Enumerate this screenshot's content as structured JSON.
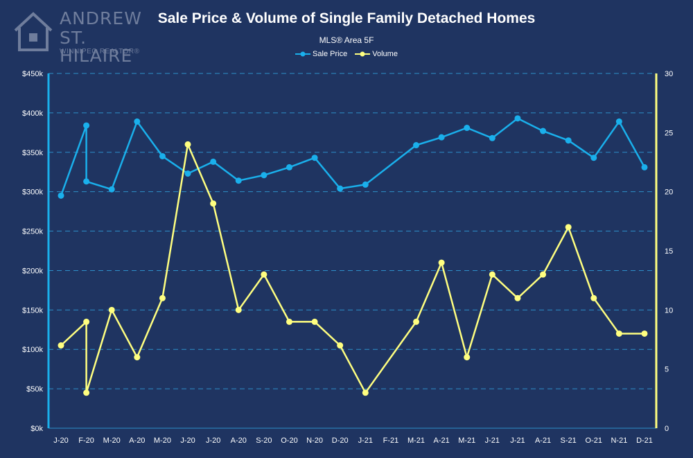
{
  "branding": {
    "line1": "ANDREW",
    "line2": "ST. HILAIRE",
    "line3": "WINNIPEG REALTOR®"
  },
  "colors": {
    "background": "#1f3461",
    "sale_price": "#1ab0ec",
    "volume": "#ffff80",
    "grid": "#2e8fc9",
    "text": "#ffffff"
  },
  "chart_data": {
    "type": "line",
    "title": "Sale Price & Volume of Single Family Detached Homes",
    "subtitle": "MLS® Area 5F",
    "categories": [
      "J-20",
      "F-20",
      "F-20",
      "M-20",
      "A-20",
      "M-20",
      "J-20",
      "J-20",
      "A-20",
      "S-20",
      "O-20",
      "N-20",
      "D-20",
      "J-21",
      "F-21",
      "M-21",
      "A-21",
      "M-21",
      "J-21",
      "J-21",
      "A-21",
      "S-21",
      "O-21",
      "N-21",
      "D-21"
    ],
    "tick_labels": [
      "J-20",
      "F-20",
      "M-20",
      "A-20",
      "M-20",
      "J-20",
      "J-20",
      "A-20",
      "S-20",
      "O-20",
      "N-20",
      "D-20",
      "J-21",
      "F-21",
      "M-21",
      "A-21",
      "M-21",
      "J-21",
      "J-21",
      "A-21",
      "S-21",
      "O-21",
      "N-21",
      "D-21"
    ],
    "series": [
      {
        "name": "Sale Price",
        "axis": "left",
        "x": [
          0,
          1,
          1,
          2,
          3,
          4,
          5,
          6,
          7,
          8,
          9,
          10,
          11,
          12,
          14,
          15,
          16,
          17,
          18,
          19,
          20,
          21,
          22,
          23
        ],
        "values": [
          295000,
          384000,
          313000,
          303000,
          389000,
          345000,
          323000,
          338000,
          314000,
          321000,
          331000,
          343000,
          304000,
          309000,
          359000,
          369000,
          381000,
          368000,
          393000,
          377000,
          365000,
          343000,
          389000,
          331000
        ]
      },
      {
        "name": "Volume",
        "axis": "right",
        "x": [
          0,
          1,
          1,
          2,
          3,
          4,
          5,
          6,
          7,
          8,
          9,
          10,
          11,
          12,
          14,
          15,
          16,
          17,
          18,
          19,
          20,
          21,
          22,
          23
        ],
        "values": [
          7,
          9,
          3,
          10,
          6,
          11,
          24,
          19,
          10,
          13,
          9,
          9,
          7,
          3,
          9,
          14,
          6,
          13,
          11,
          13,
          17,
          11,
          8,
          8
        ]
      }
    ],
    "left_axis": {
      "ylim": [
        0,
        450000
      ],
      "ticks": [
        0,
        50000,
        100000,
        150000,
        200000,
        250000,
        300000,
        350000,
        400000,
        450000
      ],
      "tick_labels": [
        "$0k",
        "$50k",
        "$100k",
        "$150k",
        "$200k",
        "$250k",
        "$300k",
        "$350k",
        "$400k",
        "$450k"
      ]
    },
    "right_axis": {
      "ylim": [
        0,
        30
      ],
      "ticks": [
        0,
        5,
        10,
        15,
        20,
        25,
        30
      ],
      "tick_labels": [
        "0",
        "5",
        "10",
        "15",
        "20",
        "25",
        "30"
      ]
    },
    "grid": true,
    "legend": "top-center"
  }
}
